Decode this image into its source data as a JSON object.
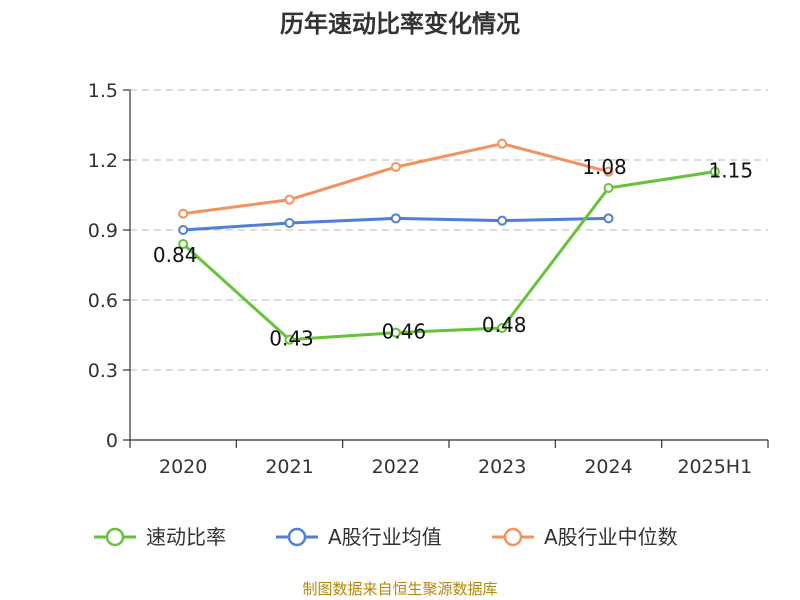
{
  "chart_data": {
    "type": "line",
    "title": "历年速动比率变化情况",
    "categories": [
      "2020",
      "2021",
      "2022",
      "2023",
      "2024",
      "2025H1"
    ],
    "y_ticks": [
      "0",
      "0.3",
      "0.6",
      "0.9",
      "1.2",
      "1.5"
    ],
    "ylim": [
      0,
      1.5
    ],
    "grid": true,
    "legend_position": "bottom",
    "series": [
      {
        "name": "速动比率",
        "color": "#67c23a",
        "values": [
          0.84,
          0.43,
          0.46,
          0.48,
          1.08,
          1.15
        ],
        "labels": [
          "0.84",
          "0.43",
          "0.46",
          "0.48",
          "1.08",
          "1.15"
        ]
      },
      {
        "name": "A股行业均值",
        "color": "#4f7fd6",
        "values": [
          0.9,
          0.93,
          0.95,
          0.94,
          0.95,
          null
        ]
      },
      {
        "name": "A股行业中位数",
        "color": "#f4925e",
        "values": [
          0.97,
          1.03,
          1.17,
          1.27,
          1.15,
          null
        ]
      }
    ],
    "source": "制图数据来自恒生聚源数据库"
  }
}
